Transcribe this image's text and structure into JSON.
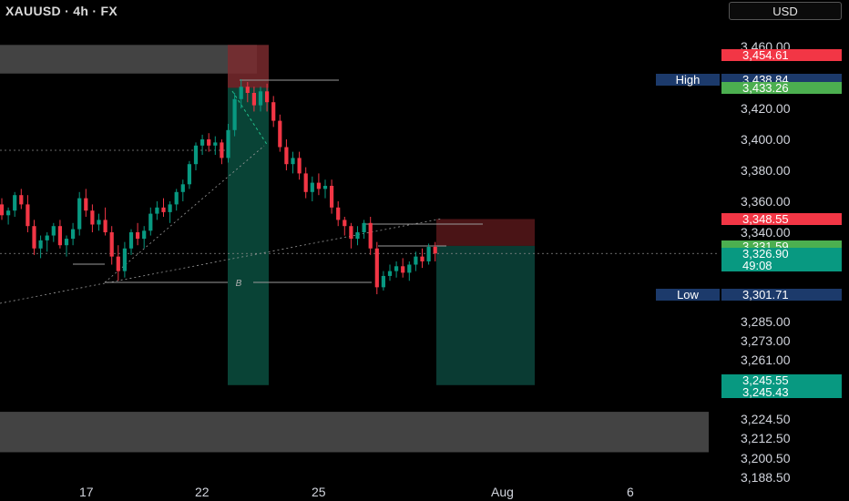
{
  "header": {
    "title": "XAUUSD · 4h · FX",
    "currency_button": "USD"
  },
  "chart_data": {
    "type": "candlestick",
    "symbol": "XAUUSD",
    "interval": "4h",
    "source": "FX",
    "currency": "USD",
    "ylim": [
      3188.5,
      3462
    ],
    "price_axis_ticks": [
      "3,460.00",
      "3,420.00",
      "3,400.00",
      "3,380.00",
      "3,360.00",
      "3,340.00",
      "3,285.00",
      "3,273.00",
      "3,261.00",
      "3,249.00",
      "3,224.50",
      "3,212.50",
      "3,200.50",
      "3,188.50"
    ],
    "x_axis_ticks": [
      "17",
      "22",
      "25",
      "Aug",
      "6"
    ],
    "price_labels": [
      {
        "id": "p3454",
        "text": "3,454.61",
        "value": 3454.61,
        "color": "#f23645"
      },
      {
        "id": "high",
        "name": "High",
        "text": "3,438.84",
        "value": 3438.84,
        "color": "#1c3a6b"
      },
      {
        "id": "p3433",
        "text": "3,433.26",
        "value": 3433.26,
        "color": "#4caf50"
      },
      {
        "id": "p3348",
        "text": "3,348.55",
        "value": 3348.55,
        "color": "#f23645"
      },
      {
        "id": "p3331",
        "text": "3,331.59",
        "value": 3331.59,
        "color": "#4caf50"
      },
      {
        "id": "last",
        "text": "3,326.90",
        "value": 3326.9,
        "countdown": "49:08",
        "color": "#089981"
      },
      {
        "id": "low",
        "name": "Low",
        "text": "3,301.71",
        "value": 3301.71,
        "color": "#1c3a6b"
      },
      {
        "id": "p3245a",
        "text": "3,245.55",
        "value": 3245.55,
        "color": "#089981"
      },
      {
        "id": "p3245b",
        "text": "3,245.43",
        "value": 3245.43,
        "color": "#089981"
      }
    ],
    "zones": [
      {
        "id": "supply-zone",
        "from": 3442.5,
        "to": 3461,
        "color": "#5a5a5a"
      },
      {
        "id": "demand-zone",
        "from": 3204,
        "to": 3229,
        "color": "#5a5a5a"
      }
    ],
    "annotation_label": "B",
    "candles": [
      [
        3358,
        3362,
        3348,
        3351
      ],
      [
        3351,
        3356,
        3345,
        3354
      ],
      [
        3354,
        3366,
        3350,
        3364
      ],
      [
        3364,
        3368,
        3355,
        3358
      ],
      [
        3358,
        3364,
        3340,
        3344
      ],
      [
        3344,
        3348,
        3326,
        3330
      ],
      [
        3330,
        3338,
        3324,
        3335
      ],
      [
        3335,
        3340,
        3328,
        3338
      ],
      [
        3338,
        3346,
        3334,
        3344
      ],
      [
        3344,
        3348,
        3330,
        3332
      ],
      [
        3332,
        3338,
        3325,
        3336
      ],
      [
        3336,
        3346,
        3332,
        3342
      ],
      [
        3342,
        3366,
        3338,
        3362
      ],
      [
        3362,
        3368,
        3350,
        3354
      ],
      [
        3354,
        3358,
        3340,
        3345
      ],
      [
        3345,
        3352,
        3341,
        3348
      ],
      [
        3348,
        3356,
        3338,
        3340
      ],
      [
        3340,
        3344,
        3320,
        3325
      ],
      [
        3325,
        3332,
        3310,
        3316
      ],
      [
        3316,
        3334,
        3312,
        3330
      ],
      [
        3330,
        3342,
        3326,
        3340
      ],
      [
        3340,
        3346,
        3332,
        3336
      ],
      [
        3336,
        3344,
        3330,
        3341
      ],
      [
        3341,
        3356,
        3338,
        3352
      ],
      [
        3352,
        3360,
        3348,
        3356
      ],
      [
        3356,
        3362,
        3350,
        3353
      ],
      [
        3353,
        3360,
        3346,
        3358
      ],
      [
        3358,
        3368,
        3354,
        3366
      ],
      [
        3366,
        3374,
        3360,
        3371
      ],
      [
        3371,
        3386,
        3368,
        3384
      ],
      [
        3384,
        3398,
        3380,
        3396
      ],
      [
        3396,
        3403,
        3390,
        3400
      ],
      [
        3400,
        3404,
        3392,
        3396
      ],
      [
        3396,
        3402,
        3390,
        3398
      ],
      [
        3398,
        3400,
        3384,
        3388
      ],
      [
        3388,
        3410,
        3385,
        3406
      ],
      [
        3406,
        3430,
        3402,
        3426
      ],
      [
        3426,
        3438.84,
        3420,
        3434
      ],
      [
        3434,
        3437,
        3424,
        3430
      ],
      [
        3430,
        3434,
        3418,
        3422
      ],
      [
        3422,
        3434,
        3418,
        3431
      ],
      [
        3431,
        3436,
        3418,
        3424
      ],
      [
        3424,
        3428,
        3408,
        3412
      ],
      [
        3412,
        3416,
        3392,
        3395
      ],
      [
        3395,
        3400,
        3380,
        3384
      ],
      [
        3384,
        3392,
        3378,
        3388
      ],
      [
        3388,
        3392,
        3374,
        3378
      ],
      [
        3378,
        3382,
        3362,
        3366
      ],
      [
        3366,
        3376,
        3360,
        3372
      ],
      [
        3372,
        3378,
        3364,
        3368
      ],
      [
        3368,
        3374,
        3362,
        3370
      ],
      [
        3370,
        3374,
        3352,
        3356
      ],
      [
        3356,
        3360,
        3344,
        3348
      ],
      [
        3348,
        3350,
        3338,
        3344
      ],
      [
        3344,
        3346,
        3330,
        3336
      ],
      [
        3336,
        3344,
        3332,
        3340
      ],
      [
        3340,
        3348,
        3336,
        3346
      ],
      [
        3346,
        3350,
        3326,
        3330
      ],
      [
        3330,
        3334,
        3301.71,
        3306
      ],
      [
        3306,
        3316,
        3304,
        3313
      ],
      [
        3313,
        3320,
        3310,
        3316
      ],
      [
        3316,
        3322,
        3312,
        3319
      ],
      [
        3319,
        3324,
        3312,
        3315
      ],
      [
        3315,
        3322,
        3310,
        3320
      ],
      [
        3320,
        3328,
        3316,
        3325
      ],
      [
        3325,
        3330,
        3318,
        3322
      ],
      [
        3322,
        3333,
        3320,
        3331
      ],
      [
        3331,
        3334,
        3322,
        3326.9
      ]
    ]
  }
}
